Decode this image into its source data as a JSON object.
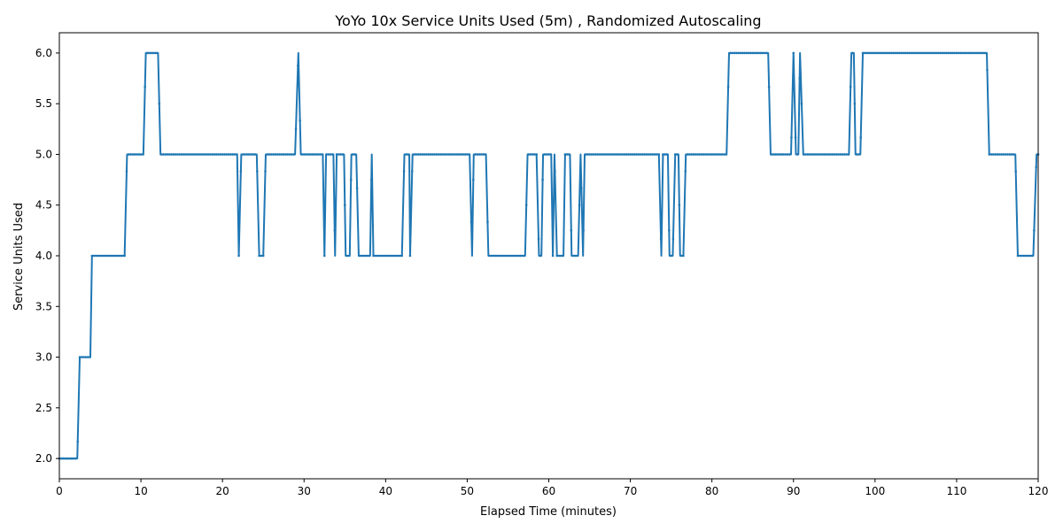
{
  "chart_data": {
    "type": "line",
    "title": "YoYo 10x Service Units Used (5m) , Randomized Autoscaling",
    "xlabel": "Elapsed Time (minutes)",
    "ylabel": "Service Units Used",
    "xlim": [
      0,
      120
    ],
    "ylim": [
      1.8,
      6.2
    ],
    "xticks": [
      0,
      10,
      20,
      30,
      40,
      50,
      60,
      70,
      80,
      90,
      100,
      110,
      120
    ],
    "yticks": [
      2.0,
      2.5,
      3.0,
      3.5,
      4.0,
      4.5,
      5.0,
      5.5,
      6.0
    ],
    "ytick_labels": [
      "2.0",
      "2.5",
      "3.0",
      "3.5",
      "4.0",
      "4.5",
      "5.0",
      "5.5",
      "6.0"
    ],
    "grid": false,
    "legend": "none",
    "line_color": "#1f77b4",
    "series": [
      {
        "x": [
          0,
          2.2,
          2.5,
          3.8,
          4.0,
          8.0,
          8.3,
          10.3,
          10.6,
          12.1,
          12.4,
          21.8,
          22.0,
          22.3,
          24.2,
          24.5,
          25.0,
          25.3,
          28.9,
          29.3,
          29.6,
          32.3,
          32.5,
          32.7,
          33.6,
          33.8,
          34.0,
          34.9,
          35.1,
          35.6,
          35.8,
          36.4,
          36.7,
          38.1,
          38.3,
          38.5,
          42.0,
          42.3,
          42.9,
          43.0,
          43.3,
          50.3,
          50.6,
          50.8,
          52.3,
          52.6,
          57.1,
          57.4,
          58.5,
          58.8,
          59.1,
          59.3,
          60.3,
          60.5,
          60.7,
          61.0,
          61.3,
          61.8,
          62.0,
          62.6,
          62.8,
          63.6,
          63.9,
          64.2,
          64.4,
          64.7,
          73.5,
          73.8,
          74.0,
          74.6,
          74.8,
          75.2,
          75.5,
          75.9,
          76.1,
          76.5,
          76.8,
          81.8,
          82.1,
          86.9,
          87.2,
          89.7,
          90.0,
          90.3,
          90.6,
          90.8,
          91.2,
          96.8,
          97.1,
          97.4,
          97.6,
          98.2,
          98.5,
          113.7,
          114.0,
          117.2,
          117.5,
          119.4,
          119.8,
          120.0
        ],
        "y": [
          2,
          2,
          3,
          3,
          4,
          4,
          5,
          5,
          6,
          6,
          5,
          5,
          4,
          5,
          5,
          4,
          4,
          5,
          5,
          6,
          5,
          5,
          4,
          5,
          5,
          4,
          5,
          5,
          4,
          4,
          5,
          5,
          4,
          4,
          5,
          4,
          4,
          5,
          5,
          4,
          5,
          5,
          4,
          5,
          5,
          4,
          4,
          5,
          5,
          4,
          4,
          5,
          5,
          4,
          5,
          4,
          4,
          4,
          5,
          5,
          4,
          4,
          5,
          4,
          5,
          5,
          5,
          4,
          5,
          5,
          4,
          4,
          5,
          5,
          4,
          4,
          5,
          5,
          6,
          6,
          5,
          5,
          6,
          5,
          5,
          6,
          5,
          5,
          6,
          6,
          5,
          5,
          6,
          6,
          5,
          5,
          4,
          4,
          5,
          5
        ]
      }
    ]
  }
}
